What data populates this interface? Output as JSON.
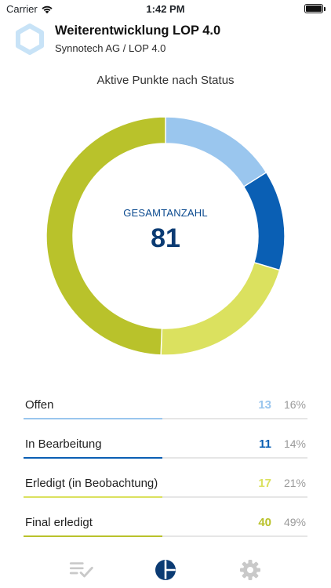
{
  "status_bar": {
    "carrier": "Carrier",
    "time": "1:42 PM"
  },
  "header": {
    "title": "Weiterentwicklung LOP 4.0",
    "subtitle": "Synnotech AG / LOP 4.0",
    "logo_color": "#c8e3f7"
  },
  "chart_title": "Aktive Punkte nach Status",
  "chart_data": {
    "type": "pie",
    "title": "Aktive Punkte nach Status",
    "center_label": "GESAMTANZAHL",
    "total": "81",
    "series": [
      {
        "name": "Offen",
        "value": 13,
        "value_label": "13",
        "percent_label": "16%",
        "color": "#9ac6ee"
      },
      {
        "name": "In Bearbeitung",
        "value": 11,
        "value_label": "11",
        "percent_label": "14%",
        "color": "#0a5fb4"
      },
      {
        "name": "Erledigt (in Beobachtung)",
        "value": 17,
        "value_label": "17",
        "percent_label": "21%",
        "color": "#dbe15f"
      },
      {
        "name": "Final erledigt",
        "value": 40,
        "value_label": "40",
        "percent_label": "49%",
        "color": "#b9c22b"
      }
    ]
  },
  "tabbar": {
    "items": [
      {
        "icon": "checklist-icon",
        "active": false
      },
      {
        "icon": "pie-chart-icon",
        "active": true
      },
      {
        "icon": "gear-icon",
        "active": false
      }
    ],
    "active_color": "#0b3b73",
    "inactive_color": "#c9c9c9"
  }
}
